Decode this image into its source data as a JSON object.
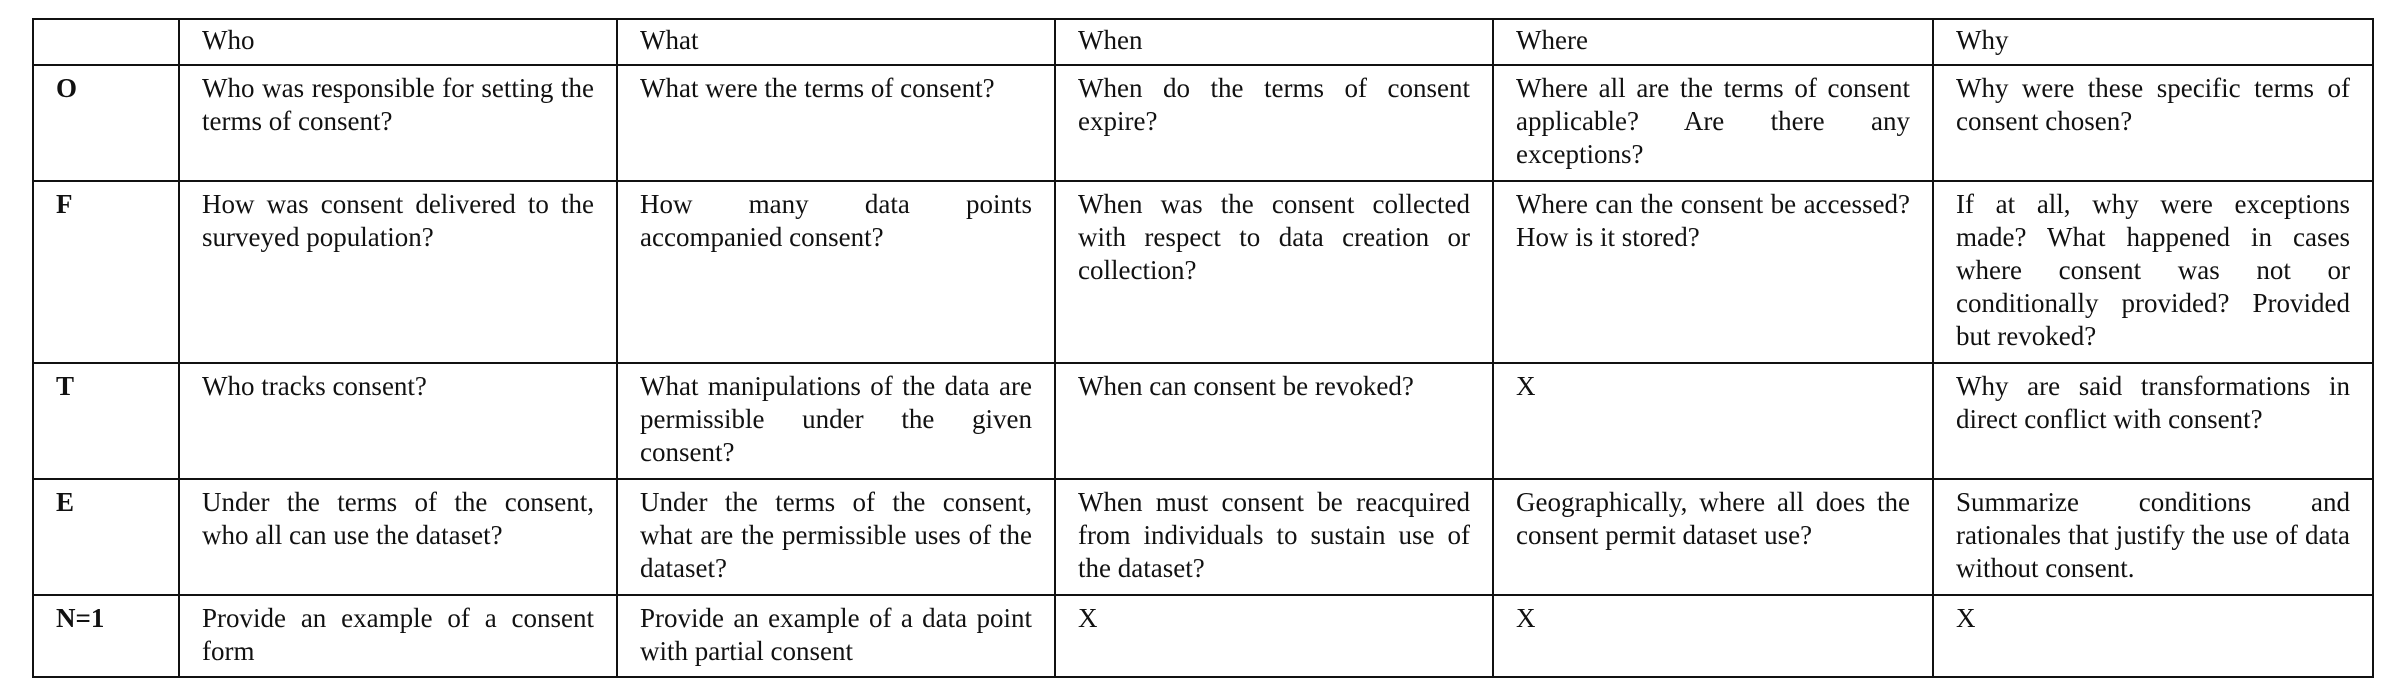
{
  "table": {
    "header": [
      "",
      "Who",
      "What",
      "When",
      "Where",
      "Why"
    ],
    "rows": [
      {
        "label": "O",
        "cells": [
          "Who was responsible for setting the terms of consent?",
          "What were the terms of consent?",
          "When do the terms of consent expire?",
          "Where all are the terms of consent applicable? Are there any exceptions?",
          "Why were these specific terms of consent chosen?"
        ]
      },
      {
        "label": "F",
        "cells": [
          "How was consent delivered to the surveyed population?",
          "How many data points accompanied consent?",
          "When was the consent collected with respect to data creation or collection?",
          "Where can the consent be accessed? How is it stored?",
          "If at all, why were exceptions made? What happened in cases where consent was not or conditionally provided? Provided but revoked?"
        ]
      },
      {
        "label": "T",
        "cells": [
          "Who tracks consent?",
          "What manipulations of the data are permissible under the given consent?",
          "When can consent be revoked?",
          "X",
          "Why are said transformations in direct conflict with consent?"
        ]
      },
      {
        "label": "E",
        "cells": [
          "Under the terms of the consent, who all can use the dataset?",
          "Under the terms of the consent, what are the permissible uses of the dataset?",
          "When must consent be reacquired from individuals to sustain use of the dataset?",
          "Geographically, where all does the consent permit dataset use?",
          "Summarize conditions and rationales that justify the use of data without consent."
        ]
      },
      {
        "label": "N=1",
        "cells": [
          "Provide an example of a consent form",
          "Provide an example of a data point with partial consent",
          "X",
          "X",
          "X"
        ]
      }
    ]
  }
}
